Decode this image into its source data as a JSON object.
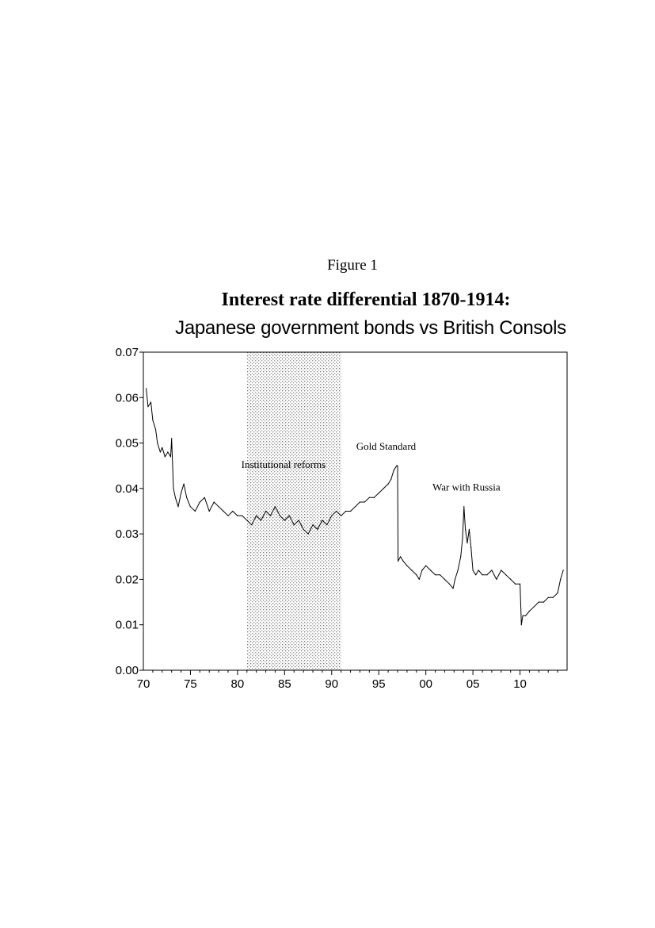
{
  "figure_label": "Figure 1",
  "chart_data": {
    "type": "line",
    "title": "Interest rate differential 1870-1914:",
    "subtitle": "Japanese government bonds vs British Consols",
    "xlabel": "",
    "ylabel": "",
    "xlim": [
      1870,
      1915
    ],
    "ylim": [
      0.0,
      0.07
    ],
    "x_ticks": [
      1870,
      1875,
      1880,
      1885,
      1890,
      1895,
      1900,
      1905,
      1910
    ],
    "x_tick_labels": [
      "70",
      "75",
      "80",
      "85",
      "90",
      "95",
      "00",
      "05",
      "10"
    ],
    "y_ticks": [
      0.0,
      0.01,
      0.02,
      0.03,
      0.04,
      0.05,
      0.06,
      0.07
    ],
    "y_tick_labels": [
      "0.00",
      "0.01",
      "0.02",
      "0.03",
      "0.04",
      "0.05",
      "0.06",
      "0.07"
    ],
    "grid": false,
    "shaded_region": {
      "x_start": 1881,
      "x_end": 1891
    },
    "annotations": [
      {
        "text": "Institutional reforms",
        "x": 1880.4,
        "y": 0.0445
      },
      {
        "text": "Gold Standard",
        "x": 1892.6,
        "y": 0.0485
      },
      {
        "text": "War with Russia",
        "x": 1900.7,
        "y": 0.0395
      }
    ],
    "series": [
      {
        "x": [
          1870.3,
          1870.5,
          1870.8,
          1871.0,
          1871.3,
          1871.5,
          1871.8,
          1872.0,
          1872.3,
          1872.6,
          1872.9,
          1873.0,
          1873.2,
          1873.4,
          1873.7,
          1874.0,
          1874.3,
          1874.6,
          1875.0,
          1875.5,
          1876.0,
          1876.5,
          1877.0,
          1877.5,
          1878.0,
          1878.5,
          1879.0,
          1879.5,
          1880.0,
          1880.5,
          1881.0,
          1881.5,
          1882.0,
          1882.5,
          1883.0,
          1883.5,
          1884.0,
          1884.5,
          1885.0,
          1885.5,
          1886.0,
          1886.5,
          1887.0,
          1887.5,
          1888.0,
          1888.5,
          1889.0,
          1889.5,
          1890.0,
          1890.5,
          1891.0,
          1891.5,
          1892.0,
          1892.5,
          1893.0,
          1893.5,
          1894.0,
          1894.5,
          1895.0,
          1895.5,
          1896.0,
          1896.3,
          1896.6,
          1896.9,
          1897.0,
          1897.05,
          1897.3,
          1897.6,
          1898.0,
          1898.5,
          1899.0,
          1899.3,
          1899.6,
          1900.0,
          1900.5,
          1901.0,
          1901.5,
          1902.0,
          1902.5,
          1902.9,
          1903.1,
          1903.4,
          1903.7,
          1903.9,
          1904.05,
          1904.2,
          1904.4,
          1904.6,
          1904.8,
          1905.0,
          1905.3,
          1905.6,
          1906.0,
          1906.5,
          1907.0,
          1907.5,
          1908.0,
          1908.5,
          1909.0,
          1909.5,
          1910.0,
          1910.15,
          1910.3,
          1910.6,
          1911.0,
          1911.5,
          1912.0,
          1912.5,
          1913.0,
          1913.5,
          1914.0,
          1914.3,
          1914.6
        ],
        "y": [
          0.062,
          0.058,
          0.059,
          0.055,
          0.053,
          0.05,
          0.048,
          0.049,
          0.047,
          0.048,
          0.047,
          0.051,
          0.04,
          0.038,
          0.036,
          0.039,
          0.041,
          0.038,
          0.036,
          0.035,
          0.037,
          0.038,
          0.035,
          0.037,
          0.036,
          0.035,
          0.034,
          0.035,
          0.034,
          0.034,
          0.033,
          0.032,
          0.034,
          0.033,
          0.035,
          0.034,
          0.036,
          0.034,
          0.033,
          0.034,
          0.032,
          0.033,
          0.031,
          0.03,
          0.032,
          0.031,
          0.033,
          0.032,
          0.034,
          0.035,
          0.034,
          0.035,
          0.035,
          0.036,
          0.037,
          0.037,
          0.038,
          0.038,
          0.039,
          0.04,
          0.041,
          0.042,
          0.044,
          0.045,
          0.045,
          0.024,
          0.025,
          0.024,
          0.023,
          0.022,
          0.021,
          0.02,
          0.022,
          0.023,
          0.022,
          0.021,
          0.021,
          0.02,
          0.019,
          0.018,
          0.02,
          0.022,
          0.025,
          0.029,
          0.036,
          0.031,
          0.028,
          0.031,
          0.027,
          0.022,
          0.021,
          0.022,
          0.021,
          0.021,
          0.022,
          0.02,
          0.022,
          0.021,
          0.02,
          0.019,
          0.019,
          0.01,
          0.012,
          0.012,
          0.013,
          0.014,
          0.015,
          0.015,
          0.016,
          0.016,
          0.017,
          0.02,
          0.022
        ]
      }
    ]
  }
}
